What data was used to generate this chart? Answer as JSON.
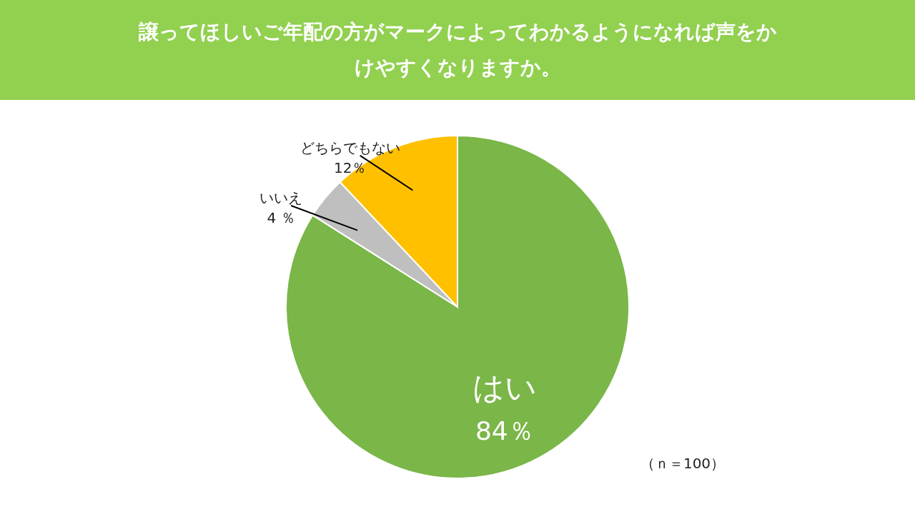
{
  "chart_data": {
    "type": "pie",
    "title": "譲ってほしいご年配の方がマークによってわかるようになれば声をかけやすくなりますか。",
    "categories": [
      "はい",
      "いいえ",
      "どちらでもない"
    ],
    "values": [
      84,
      4,
      12
    ],
    "colors": [
      "#7ab648",
      "#bfbfbf",
      "#ffc000"
    ],
    "value_labels": [
      "84％",
      "4 ％",
      "12％"
    ],
    "annotations": [
      "（ｎ＝100）"
    ]
  }
}
